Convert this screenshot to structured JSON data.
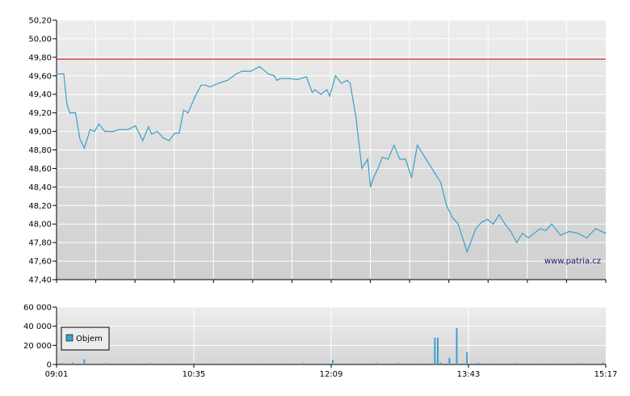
{
  "chart_data": [
    {
      "type": "line",
      "title": "",
      "xlabel": "",
      "ylabel": "",
      "ylim": [
        47.4,
        50.2
      ],
      "y_ticks": [
        "50,20",
        "50,00",
        "49,80",
        "49,60",
        "49,40",
        "49,20",
        "49,00",
        "48,80",
        "48,60",
        "48,40",
        "48,20",
        "48,00",
        "47,80",
        "47,60",
        "47,40"
      ],
      "reference_line": {
        "value": 49.78,
        "color": "#cc0000"
      },
      "watermark": "www.patria.cz",
      "grid": true,
      "line_color": "#3aa0cc",
      "x_range": [
        "09:01",
        "15:17"
      ],
      "series": [
        {
          "x": [
            "09:01",
            "09:06",
            "09:08",
            "09:10",
            "09:14",
            "09:17",
            "09:20",
            "09:24",
            "09:27",
            "09:30",
            "09:34",
            "09:40",
            "09:44",
            "09:50",
            "09:55",
            "10:00",
            "10:04",
            "10:06",
            "10:10",
            "10:14",
            "10:18",
            "10:22",
            "10:25",
            "10:28",
            "10:31",
            "10:36",
            "10:40",
            "10:43",
            "10:46",
            "10:52",
            "10:58",
            "11:04",
            "11:08",
            "11:14",
            "11:20",
            "11:26",
            "11:30",
            "11:32",
            "11:34",
            "11:40",
            "11:46",
            "11:52",
            "11:56",
            "11:58",
            "12:02",
            "12:06",
            "12:08",
            "12:12",
            "12:16",
            "12:20",
            "12:22",
            "12:26",
            "12:30",
            "12:34",
            "12:36",
            "12:38",
            "12:41",
            "12:44",
            "12:48",
            "12:52",
            "12:56",
            "13:00",
            "13:04",
            "13:08",
            "13:12",
            "13:16",
            "13:20",
            "13:24",
            "13:28",
            "13:32",
            "13:36",
            "13:40",
            "13:42",
            "13:44",
            "13:48",
            "13:52",
            "13:56",
            "14:00",
            "14:04",
            "14:08",
            "14:12",
            "14:16",
            "14:20",
            "14:24",
            "14:28",
            "14:32",
            "14:36",
            "14:40",
            "14:46",
            "14:52",
            "14:58",
            "15:04",
            "15:10",
            "15:17"
          ],
          "values": [
            49.62,
            49.62,
            49.3,
            49.2,
            49.2,
            48.92,
            48.82,
            49.02,
            49.0,
            49.08,
            49.0,
            49.0,
            49.02,
            49.02,
            49.06,
            48.9,
            49.05,
            48.97,
            49.0,
            48.93,
            48.9,
            48.98,
            48.98,
            49.23,
            49.2,
            49.38,
            49.5,
            49.5,
            49.48,
            49.52,
            49.55,
            49.62,
            49.65,
            49.65,
            49.7,
            49.62,
            49.6,
            49.55,
            49.57,
            49.57,
            49.56,
            49.59,
            49.42,
            49.45,
            49.4,
            49.45,
            49.38,
            49.6,
            49.52,
            49.55,
            49.52,
            49.15,
            48.6,
            48.7,
            48.4,
            48.5,
            48.6,
            48.72,
            48.7,
            48.85,
            48.7,
            48.7,
            48.5,
            48.85,
            48.75,
            48.65,
            48.55,
            48.45,
            48.2,
            48.07,
            48.0,
            47.8,
            47.7,
            47.78,
            47.95,
            48.02,
            48.05,
            48.0,
            48.1,
            48.0,
            47.92,
            47.8,
            47.9,
            47.85,
            47.9,
            47.95,
            47.93,
            48.0,
            47.88,
            47.92,
            47.9,
            47.85,
            47.95,
            47.9
          ]
        }
      ]
    },
    {
      "type": "bar",
      "title": "",
      "xlabel": "",
      "ylabel": "",
      "ylim": [
        0,
        60000
      ],
      "y_ticks": [
        "60 000",
        "40 000",
        "20 000",
        "0"
      ],
      "x_ticks": [
        "09:01",
        "10:35",
        "12:09",
        "13:43",
        "15:17"
      ],
      "legend": {
        "label": "Objem",
        "placement": "middle-left"
      },
      "bar_color": "#3aa0cc",
      "series": [
        {
          "name": "Objem",
          "x": [
            "09:05",
            "09:12",
            "09:20",
            "09:35",
            "09:50",
            "10:05",
            "10:20",
            "10:35",
            "10:50",
            "11:05",
            "11:20",
            "11:35",
            "11:50",
            "12:05",
            "12:10",
            "12:25",
            "12:40",
            "12:55",
            "13:10",
            "13:20",
            "13:22",
            "13:24",
            "13:30",
            "13:35",
            "13:42",
            "13:50",
            "14:00",
            "14:15",
            "14:30",
            "14:45",
            "15:00",
            "15:15"
          ],
          "values": [
            1500,
            2000,
            5500,
            1500,
            1200,
            1500,
            1000,
            1500,
            1200,
            1000,
            1000,
            1200,
            1500,
            1000,
            5000,
            1200,
            1500,
            1500,
            1200,
            28000,
            28000,
            2000,
            7000,
            38000,
            13000,
            1500,
            1200,
            1500,
            1000,
            1200,
            1500,
            2000
          ]
        }
      ]
    }
  ]
}
